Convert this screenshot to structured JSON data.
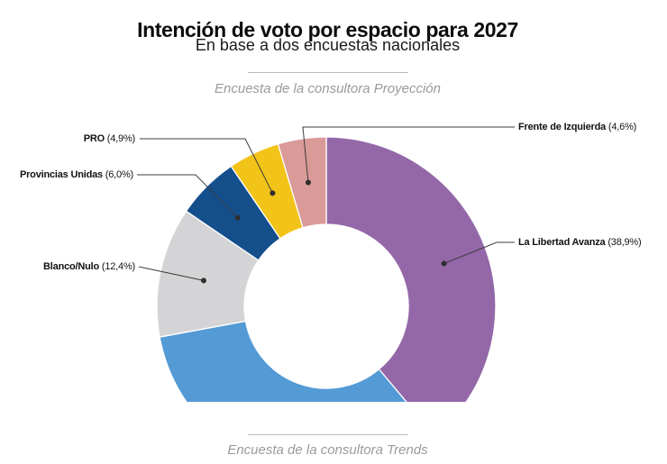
{
  "header": {
    "title": "Intención de voto por espacio para 2027",
    "subtitle": "En base a dos encuestas nacionales"
  },
  "sections": {
    "top_caption": "Encuesta de la consultora Proyección",
    "bottom_caption": "Encuesta de la consultora Trends"
  },
  "chart_data": {
    "type": "pie",
    "variant": "donut",
    "title": "Encuesta de la consultora Proyección",
    "units": "%",
    "decimal_separator": ",",
    "direction": "clockwise",
    "start_angle_deg": 0,
    "inner_radius_ratio": 0.48,
    "bottom_clipped": true,
    "segments": [
      {
        "name": "La Libertad Avanza",
        "value": 38.9,
        "pct_label": "(38,9%)",
        "color": "#9468A8",
        "label_visible": true
      },
      {
        "name": "",
        "value": 33.2,
        "pct_label": "",
        "color": "#549AD5",
        "label_visible": false
      },
      {
        "name": "Blanco/Nulo",
        "value": 12.4,
        "pct_label": "(12,4%)",
        "color": "#D4D4D6",
        "label_visible": true
      },
      {
        "name": "Provincias Unidas",
        "value": 6.0,
        "pct_label": "(6,0%)",
        "color": "#144F8C",
        "label_visible": true
      },
      {
        "name": "PRO",
        "value": 4.9,
        "pct_label": "(4,9%)",
        "color": "#F2C318",
        "label_visible": true
      },
      {
        "name": "Frente de Izquierda",
        "value": 4.6,
        "pct_label": "(4,6%)",
        "color": "#DA9A98",
        "label_visible": true
      }
    ]
  },
  "colors": {
    "background": "#FFFFFF",
    "title_text": "#0D0D0D",
    "subtitle_text": "#1A1A1A",
    "caption_text": "#9A9AA0",
    "divider": "#BDBDC2",
    "callout_line": "#3C3C3C",
    "callout_dot": "#2E2E2E",
    "slice_border": "#FFFFFF"
  }
}
